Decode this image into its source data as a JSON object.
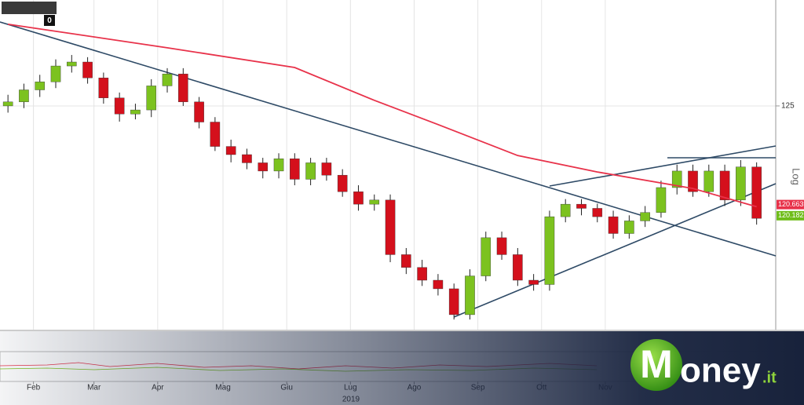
{
  "chart_data": {
    "type": "candlestick",
    "toolbar_label": "0",
    "axis_label": "Log",
    "log_scale": true,
    "year_label": "2019",
    "x": [
      0,
      1,
      2,
      3,
      4,
      5,
      6,
      7,
      8,
      9,
      10,
      11,
      12,
      13,
      14,
      15,
      16,
      17,
      18,
      19,
      20,
      21,
      22,
      23,
      24,
      25,
      26,
      27,
      28,
      29,
      30,
      31,
      32,
      33,
      34,
      35,
      36,
      37,
      38,
      39,
      40,
      41,
      42,
      43,
      44,
      45,
      46,
      47
    ],
    "open": [
      125.0,
      125.18,
      125.72,
      126.08,
      126.8,
      126.98,
      126.26,
      125.36,
      124.64,
      124.82,
      125.9,
      126.44,
      125.18,
      124.28,
      123.2,
      122.84,
      122.48,
      122.12,
      122.66,
      121.76,
      122.48,
      121.94,
      121.22,
      120.68,
      120.86,
      118.52,
      117.98,
      117.44,
      117.08,
      116.0,
      117.62,
      119.24,
      118.52,
      117.44,
      117.26,
      120.14,
      120.68,
      120.5,
      120.14,
      119.42,
      119.96,
      120.32,
      121.4,
      122.12,
      121.22,
      122.12,
      120.86,
      122.3
    ],
    "high": [
      125.5,
      126.0,
      126.4,
      127.1,
      127.3,
      127.2,
      126.5,
      125.6,
      125.1,
      126.2,
      126.7,
      126.7,
      125.4,
      124.5,
      123.5,
      123.1,
      122.7,
      122.9,
      122.9,
      122.7,
      122.7,
      122.2,
      121.5,
      121.1,
      121.1,
      118.8,
      118.3,
      117.7,
      117.3,
      117.9,
      119.5,
      119.5,
      118.8,
      117.7,
      120.4,
      120.9,
      120.9,
      120.7,
      120.4,
      120.2,
      120.6,
      121.7,
      122.4,
      122.4,
      122.4,
      122.4,
      122.6,
      122.5
    ],
    "low": [
      124.7,
      124.9,
      125.4,
      125.8,
      126.5,
      126.0,
      125.1,
      124.3,
      124.4,
      124.5,
      125.6,
      125.0,
      124.0,
      123.0,
      122.5,
      122.2,
      121.8,
      121.8,
      121.5,
      121.5,
      121.7,
      121.0,
      120.4,
      120.4,
      118.2,
      117.7,
      117.2,
      116.8,
      115.8,
      115.8,
      117.4,
      118.3,
      117.2,
      117.0,
      117.0,
      119.9,
      120.2,
      119.9,
      119.2,
      119.2,
      119.7,
      120.1,
      121.1,
      121.0,
      121.0,
      120.6,
      120.6,
      119.8
    ],
    "close": [
      125.18,
      125.72,
      126.08,
      126.8,
      126.98,
      126.26,
      125.36,
      124.64,
      124.82,
      125.9,
      126.44,
      125.18,
      124.28,
      123.2,
      122.84,
      122.48,
      122.12,
      122.66,
      121.76,
      122.48,
      121.94,
      121.22,
      120.68,
      120.86,
      118.52,
      117.98,
      117.44,
      117.08,
      116.0,
      117.62,
      119.24,
      118.52,
      117.44,
      117.26,
      120.14,
      120.68,
      120.5,
      120.14,
      119.42,
      119.96,
      120.32,
      121.4,
      122.12,
      121.22,
      122.12,
      120.86,
      122.3,
      120.07
    ],
    "up_color": "#7cc21f",
    "down_color": "#d4101c",
    "moving_average": {
      "x": [
        0,
        10,
        18,
        23,
        27,
        32,
        37,
        43,
        47
      ],
      "values": [
        128.71,
        127.63,
        126.73,
        125.25,
        124.17,
        122.8,
        122.08,
        121.36,
        120.57
      ],
      "color": "#e8324a"
    },
    "ma_last": 120.6639,
    "ma_label_color": "#e8324a",
    "last_price": 120.1825,
    "last_label_color": "#6fbd1a",
    "xlim": [
      -0.5,
      48.2
    ],
    "xticks": [
      {
        "value": 1.6,
        "label": "Feb"
      },
      {
        "value": 5.4,
        "label": "Mar"
      },
      {
        "value": 9.4,
        "label": "Apr"
      },
      {
        "value": 13.5,
        "label": "Mag"
      },
      {
        "value": 17.5,
        "label": "Giu"
      },
      {
        "value": 21.5,
        "label": "Lug"
      },
      {
        "value": 25.5,
        "label": "Ago"
      },
      {
        "value": 29.5,
        "label": "Sep"
      },
      {
        "value": 33.5,
        "label": "Ott"
      },
      {
        "value": 37.5,
        "label": "Nov"
      }
    ],
    "ylim": [
      115.38,
      129.83
    ],
    "yticks": [
      125
    ],
    "grid": true,
    "logo": [
      "M",
      "oney",
      ".it"
    ]
  }
}
